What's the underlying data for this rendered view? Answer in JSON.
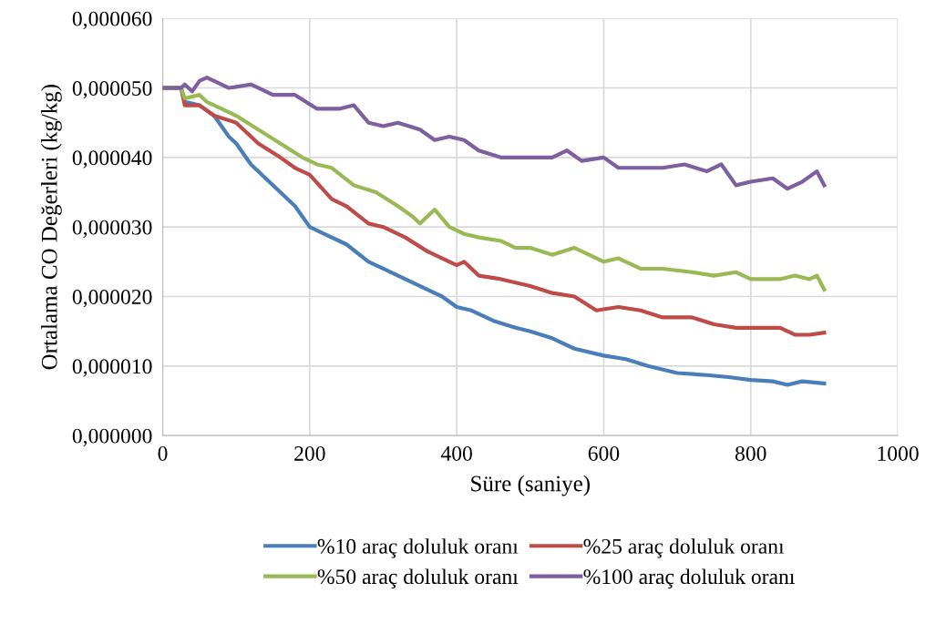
{
  "chart_data": {
    "type": "line",
    "xlabel": "Süre (saniye)",
    "ylabel": "Ortalama CO Değerleri (kg/kg)",
    "xlim": [
      0,
      1000
    ],
    "xticks": [
      0,
      200,
      400,
      600,
      800,
      1000
    ],
    "ylim": [
      0,
      6e-05
    ],
    "yticks": [
      {
        "value": 0,
        "label": "0,000000"
      },
      {
        "value": 1e-05,
        "label": "0,000010"
      },
      {
        "value": 2e-05,
        "label": "0,000020"
      },
      {
        "value": 3e-05,
        "label": "0,000030"
      },
      {
        "value": 4e-05,
        "label": "0,000040"
      },
      {
        "value": 5e-05,
        "label": "0,000050"
      },
      {
        "value": 6e-05,
        "label": "0,000060"
      }
    ],
    "grid": true,
    "legend": "bottom",
    "marker": "none",
    "line_style": "solid",
    "series": [
      {
        "name": "%10 araç doluluk oranı",
        "color": "#4a7ebb",
        "x": [
          0,
          25,
          30,
          50,
          70,
          90,
          100,
          120,
          140,
          160,
          180,
          200,
          220,
          250,
          280,
          300,
          330,
          360,
          380,
          400,
          420,
          450,
          480,
          500,
          530,
          560,
          600,
          630,
          660,
          700,
          740,
          770,
          800,
          830,
          850,
          870,
          900
        ],
        "values": [
          5e-05,
          5e-05,
          4.8e-05,
          4.75e-05,
          4.6e-05,
          4.3e-05,
          4.2e-05,
          3.9e-05,
          3.7e-05,
          3.5e-05,
          3.3e-05,
          3e-05,
          2.9e-05,
          2.75e-05,
          2.5e-05,
          2.4e-05,
          2.25e-05,
          2.1e-05,
          2e-05,
          1.85e-05,
          1.8e-05,
          1.65e-05,
          1.55e-05,
          1.5e-05,
          1.4e-05,
          1.25e-05,
          1.15e-05,
          1.1e-05,
          1e-05,
          9e-06,
          8.7e-06,
          8.4e-06,
          8e-06,
          7.8e-06,
          7.3e-06,
          7.8e-06,
          7.5e-06
        ]
      },
      {
        "name": "%25 araç doluluk oranı",
        "color": "#be4b48",
        "x": [
          0,
          25,
          30,
          50,
          70,
          100,
          130,
          160,
          180,
          200,
          230,
          250,
          280,
          300,
          330,
          360,
          390,
          400,
          410,
          430,
          460,
          500,
          530,
          560,
          590,
          620,
          650,
          680,
          720,
          750,
          780,
          810,
          840,
          860,
          880,
          900
        ],
        "values": [
          5e-05,
          5e-05,
          4.75e-05,
          4.75e-05,
          4.6e-05,
          4.5e-05,
          4.2e-05,
          4e-05,
          3.85e-05,
          3.75e-05,
          3.4e-05,
          3.3e-05,
          3.05e-05,
          3e-05,
          2.85e-05,
          2.65e-05,
          2.5e-05,
          2.45e-05,
          2.5e-05,
          2.3e-05,
          2.25e-05,
          2.15e-05,
          2.05e-05,
          2e-05,
          1.8e-05,
          1.85e-05,
          1.8e-05,
          1.7e-05,
          1.7e-05,
          1.6e-05,
          1.55e-05,
          1.55e-05,
          1.55e-05,
          1.45e-05,
          1.45e-05,
          1.48e-05
        ]
      },
      {
        "name": "%50 araç doluluk oranı",
        "color": "#98b954",
        "x": [
          0,
          25,
          30,
          50,
          60,
          80,
          100,
          130,
          160,
          190,
          210,
          230,
          260,
          290,
          320,
          340,
          350,
          370,
          390,
          410,
          430,
          460,
          480,
          500,
          530,
          560,
          580,
          600,
          620,
          650,
          680,
          720,
          750,
          780,
          800,
          840,
          860,
          880,
          890,
          900
        ],
        "values": [
          5e-05,
          5e-05,
          4.85e-05,
          4.9e-05,
          4.8e-05,
          4.7e-05,
          4.6e-05,
          4.4e-05,
          4.2e-05,
          4e-05,
          3.9e-05,
          3.85e-05,
          3.6e-05,
          3.5e-05,
          3.3e-05,
          3.15e-05,
          3.05e-05,
          3.25e-05,
          3e-05,
          2.9e-05,
          2.85e-05,
          2.8e-05,
          2.7e-05,
          2.7e-05,
          2.6e-05,
          2.7e-05,
          2.6e-05,
          2.5e-05,
          2.55e-05,
          2.4e-05,
          2.4e-05,
          2.35e-05,
          2.3e-05,
          2.35e-05,
          2.25e-05,
          2.25e-05,
          2.3e-05,
          2.25e-05,
          2.3e-05,
          2.1e-05
        ]
      },
      {
        "name": "%100 araç doluluk oranı",
        "color": "#7d5fa0",
        "x": [
          0,
          25,
          30,
          40,
          50,
          60,
          70,
          90,
          120,
          150,
          180,
          210,
          240,
          260,
          280,
          300,
          320,
          350,
          370,
          390,
          410,
          430,
          460,
          490,
          530,
          550,
          570,
          600,
          620,
          650,
          680,
          710,
          740,
          760,
          780,
          800,
          830,
          850,
          870,
          890,
          900
        ],
        "values": [
          5e-05,
          5e-05,
          5.05e-05,
          4.95e-05,
          5.1e-05,
          5.15e-05,
          5.1e-05,
          5e-05,
          5.05e-05,
          4.9e-05,
          4.9e-05,
          4.7e-05,
          4.7e-05,
          4.75e-05,
          4.5e-05,
          4.45e-05,
          4.5e-05,
          4.4e-05,
          4.25e-05,
          4.3e-05,
          4.25e-05,
          4.1e-05,
          4e-05,
          4e-05,
          4e-05,
          4.1e-05,
          3.95e-05,
          4e-05,
          3.85e-05,
          3.85e-05,
          3.85e-05,
          3.9e-05,
          3.8e-05,
          3.9e-05,
          3.6e-05,
          3.65e-05,
          3.7e-05,
          3.55e-05,
          3.65e-05,
          3.8e-05,
          3.6e-05
        ]
      }
    ]
  }
}
